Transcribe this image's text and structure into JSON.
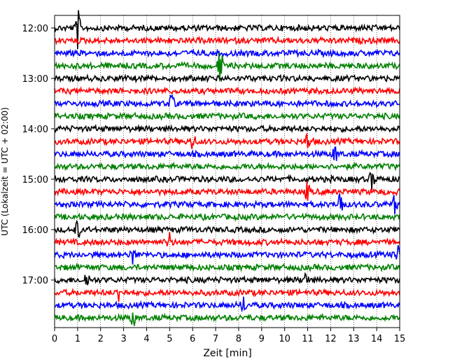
{
  "chart_data": {
    "type": "line",
    "title": "",
    "xlabel": "Zeit  [min]",
    "ylabel": "UTC (Lokalzeit = UTC + 02:00)",
    "xlim": [
      0,
      15
    ],
    "x_ticks": [
      "0",
      "1",
      "2",
      "3",
      "4",
      "5",
      "6",
      "7",
      "8",
      "9",
      "10",
      "11",
      "12",
      "13",
      "14",
      "15"
    ],
    "y_ticks": [
      "12:00",
      "13:00",
      "14:00",
      "15:00",
      "16:00",
      "17:00"
    ],
    "grid": "vertical dotted at each minute",
    "trace_interval_minutes": 15,
    "trace_colors": [
      "#000000",
      "#ff0000",
      "#0000ff",
      "#008000"
    ],
    "series": [
      {
        "start": "12:00",
        "color": "#000000"
      },
      {
        "start": "12:15",
        "color": "#ff0000"
      },
      {
        "start": "12:30",
        "color": "#0000ff"
      },
      {
        "start": "12:45",
        "color": "#008000"
      },
      {
        "start": "13:00",
        "color": "#000000"
      },
      {
        "start": "13:15",
        "color": "#ff0000"
      },
      {
        "start": "13:30",
        "color": "#0000ff"
      },
      {
        "start": "13:45",
        "color": "#008000"
      },
      {
        "start": "14:00",
        "color": "#000000"
      },
      {
        "start": "14:15",
        "color": "#ff0000"
      },
      {
        "start": "14:30",
        "color": "#0000ff"
      },
      {
        "start": "14:45",
        "color": "#008000"
      },
      {
        "start": "15:00",
        "color": "#000000"
      },
      {
        "start": "15:15",
        "color": "#ff0000"
      },
      {
        "start": "15:30",
        "color": "#0000ff"
      },
      {
        "start": "15:45",
        "color": "#008000"
      },
      {
        "start": "16:00",
        "color": "#000000"
      },
      {
        "start": "16:15",
        "color": "#ff0000"
      },
      {
        "start": "16:30",
        "color": "#0000ff"
      },
      {
        "start": "16:45",
        "color": "#008000"
      },
      {
        "start": "17:00",
        "color": "#000000"
      },
      {
        "start": "17:15",
        "color": "#ff0000"
      },
      {
        "start": "17:30",
        "color": "#0000ff"
      },
      {
        "start": "17:45",
        "color": "#008000"
      }
    ],
    "events": [
      {
        "t": 1.0,
        "trace_start": "12:00",
        "strength": "large"
      },
      {
        "t": 7.2,
        "trace_start": "12:45",
        "strength": "large"
      },
      {
        "t": 5.1,
        "trace_start": "13:30",
        "strength": "medium"
      },
      {
        "t": 6.0,
        "trace_start": "14:15",
        "strength": "medium"
      },
      {
        "t": 11.0,
        "trace_start": "14:15",
        "strength": "medium"
      },
      {
        "t": 12.2,
        "trace_start": "14:30",
        "strength": "medium"
      },
      {
        "t": 13.8,
        "trace_start": "15:00",
        "strength": "medium"
      },
      {
        "t": 11.0,
        "trace_start": "15:15",
        "strength": "medium"
      },
      {
        "t": 12.4,
        "trace_start": "15:30",
        "strength": "large"
      },
      {
        "t": 14.8,
        "trace_start": "15:30",
        "strength": "medium"
      },
      {
        "t": 1.0,
        "trace_start": "16:00",
        "strength": "medium"
      },
      {
        "t": 5.0,
        "trace_start": "16:15",
        "strength": "medium"
      },
      {
        "t": 3.4,
        "trace_start": "16:30",
        "strength": "medium"
      },
      {
        "t": 14.9,
        "trace_start": "16:30",
        "strength": "medium"
      },
      {
        "t": 10.9,
        "trace_start": "17:00",
        "strength": "medium"
      },
      {
        "t": 1.4,
        "trace_start": "17:00",
        "strength": "medium"
      },
      {
        "t": 2.8,
        "trace_start": "17:15",
        "strength": "medium"
      },
      {
        "t": 3.4,
        "trace_start": "17:45",
        "strength": "medium"
      },
      {
        "t": 8.2,
        "trace_start": "17:30",
        "strength": "medium"
      }
    ]
  }
}
